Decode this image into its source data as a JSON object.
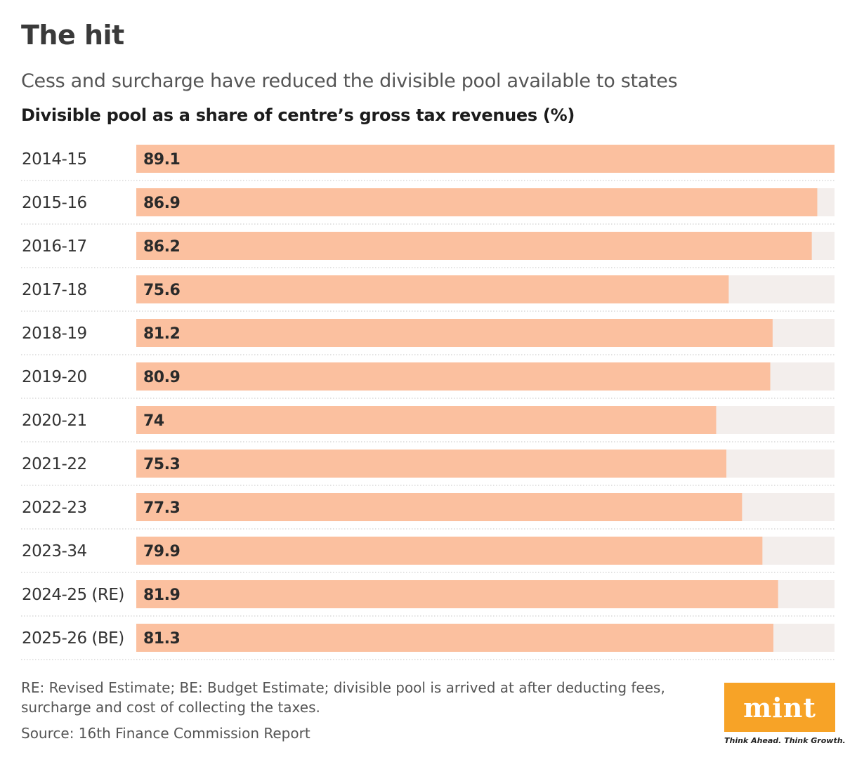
{
  "header": {
    "title": "The hit",
    "subtitle": "Cess and surcharge have reduced the divisible pool available to states",
    "chart_title": "Divisible pool as a share of centre’s gross tax revenues (%)"
  },
  "footer": {
    "note": "RE: Revised Estimate; BE: Budget Estimate; divisible pool is arrived at after deducting fees, surcharge and cost of collecting the taxes.",
    "source": "Source: 16th Finance Commission Report"
  },
  "logo": {
    "text": "mint",
    "tagline": "Think Ahead. Think Growth."
  },
  "colors": {
    "bar": "#fbc09f",
    "track": "#f3eeec",
    "logo_bg": "#f7a327"
  },
  "chart_data": {
    "type": "bar",
    "orientation": "horizontal",
    "title": "Divisible pool as a share of centre’s gross tax revenues (%)",
    "categories": [
      "2014-15",
      "2015-16",
      "2016-17",
      "2017-18",
      "2018-19",
      "2019-20",
      "2020-21",
      "2021-22",
      "2022-23",
      "2023-34",
      "2024-25 (RE)",
      "2025-26 (BE)"
    ],
    "values": [
      89.1,
      86.9,
      86.2,
      75.6,
      81.2,
      80.9,
      74,
      75.3,
      77.3,
      79.9,
      81.9,
      81.3
    ],
    "value_labels": [
      "89.1",
      "86.9",
      "86.2",
      "75.6",
      "81.2",
      "80.9",
      "74",
      "75.3",
      "77.3",
      "79.9",
      "81.9",
      "81.3"
    ],
    "xlim": [
      0,
      89.1
    ],
    "grid": false,
    "legend": "none"
  }
}
